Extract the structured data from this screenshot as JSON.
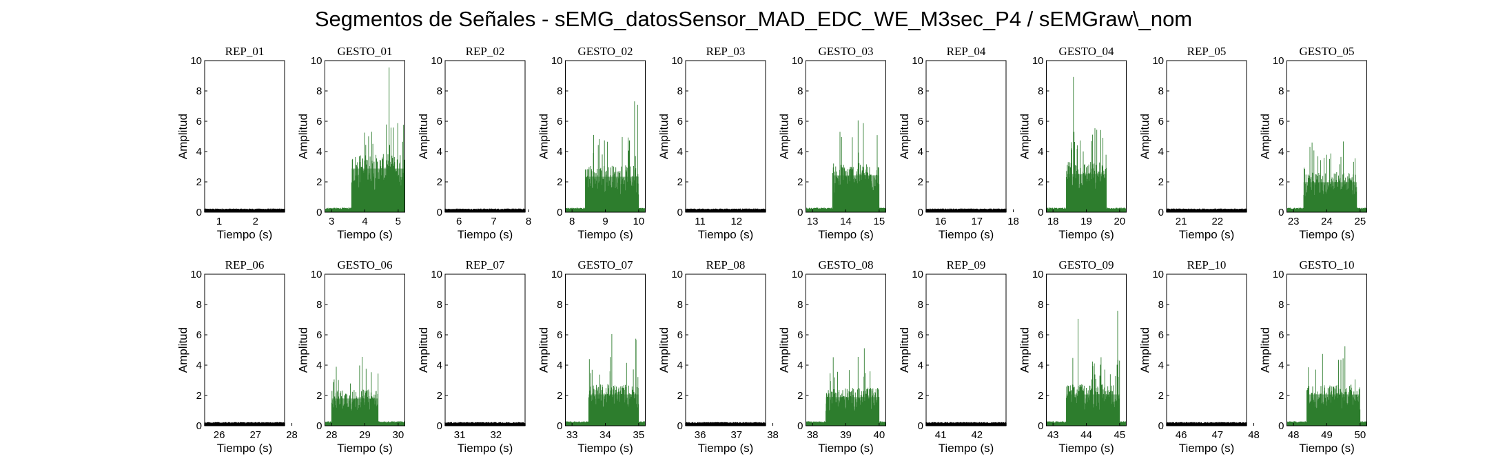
{
  "figure": {
    "title": "Segmentos de Señales - sEMG_datosSensor_MAD_EDC_WE_M3sec_P4 / sEMGraw\\_nom"
  },
  "colors": {
    "rest": "#000000",
    "gesture": "#2e7d2e",
    "axes": "#000000"
  },
  "chart_data": {
    "type": "line",
    "rows": 2,
    "cols": 10,
    "grid": false,
    "ylim": [
      0,
      10
    ],
    "yticks": [
      0,
      2,
      4,
      6,
      8,
      10
    ],
    "xlabel": "Tiempo (s)",
    "ylabel": "Amplitud",
    "panels": [
      {
        "title": "REP_01",
        "kind": "rest",
        "xlim": [
          0.6,
          2.8
        ],
        "xticks": [
          1,
          2
        ],
        "active": null,
        "peak": 0.25,
        "level": 0.2
      },
      {
        "title": "GESTO_01",
        "kind": "gesture",
        "xlim": [
          2.8,
          5.2
        ],
        "xticks": [
          3,
          4,
          5
        ],
        "active": [
          3.6,
          5.2
        ],
        "peak": 9.6,
        "level": 3.2
      },
      {
        "title": "REP_02",
        "kind": "rest",
        "xlim": [
          5.6,
          7.9
        ],
        "xticks": [
          6,
          7,
          8
        ],
        "active": null,
        "peak": 0.25,
        "level": 0.2
      },
      {
        "title": "GESTO_02",
        "kind": "gesture",
        "xlim": [
          7.8,
          10.2
        ],
        "xticks": [
          8,
          9,
          10
        ],
        "active": [
          8.4,
          10.0
        ],
        "peak": 8.1,
        "level": 2.6
      },
      {
        "title": "REP_03",
        "kind": "rest",
        "xlim": [
          10.6,
          12.8
        ],
        "xticks": [
          11,
          12
        ],
        "active": null,
        "peak": 0.25,
        "level": 0.2
      },
      {
        "title": "GESTO_03",
        "kind": "gesture",
        "xlim": [
          12.8,
          15.2
        ],
        "xticks": [
          13,
          14,
          15
        ],
        "active": [
          13.6,
          15.0
        ],
        "peak": 6.8,
        "level": 2.7
      },
      {
        "title": "REP_04",
        "kind": "rest",
        "xlim": [
          15.6,
          17.8
        ],
        "xticks": [
          16,
          17,
          18
        ],
        "active": null,
        "peak": 0.25,
        "level": 0.2
      },
      {
        "title": "GESTO_04",
        "kind": "gesture",
        "xlim": [
          17.8,
          20.2
        ],
        "xticks": [
          18,
          19,
          20
        ],
        "active": [
          18.4,
          19.6
        ],
        "peak": 9.9,
        "level": 2.8
      },
      {
        "title": "REP_05",
        "kind": "rest",
        "xlim": [
          20.6,
          22.8
        ],
        "xticks": [
          21,
          22
        ],
        "active": null,
        "peak": 0.25,
        "level": 0.2
      },
      {
        "title": "GESTO_05",
        "kind": "gesture",
        "xlim": [
          22.8,
          25.2
        ],
        "xticks": [
          23,
          24,
          25
        ],
        "active": [
          23.3,
          24.9
        ],
        "peak": 4.9,
        "level": 2.2
      },
      {
        "title": "REP_06",
        "kind": "rest",
        "xlim": [
          25.6,
          27.8
        ],
        "xticks": [
          26,
          27,
          28
        ],
        "active": null,
        "peak": 0.25,
        "level": 0.2
      },
      {
        "title": "GESTO_06",
        "kind": "gesture",
        "xlim": [
          27.8,
          30.2
        ],
        "xticks": [
          28,
          29,
          30
        ],
        "active": [
          28.0,
          29.4
        ],
        "peak": 4.6,
        "level": 2.0
      },
      {
        "title": "REP_07",
        "kind": "rest",
        "xlim": [
          30.6,
          32.8
        ],
        "xticks": [
          31,
          32
        ],
        "active": null,
        "peak": 0.25,
        "level": 0.2
      },
      {
        "title": "GESTO_07",
        "kind": "gesture",
        "xlim": [
          32.8,
          35.2
        ],
        "xticks": [
          33,
          34,
          35
        ],
        "active": [
          33.5,
          35.0
        ],
        "peak": 6.6,
        "level": 2.3
      },
      {
        "title": "REP_08",
        "kind": "rest",
        "xlim": [
          35.6,
          37.8
        ],
        "xticks": [
          36,
          37,
          38
        ],
        "active": null,
        "peak": 0.25,
        "level": 0.2
      },
      {
        "title": "GESTO_08",
        "kind": "gesture",
        "xlim": [
          37.8,
          40.2
        ],
        "xticks": [
          38,
          39,
          40
        ],
        "active": [
          38.4,
          40.0
        ],
        "peak": 5.3,
        "level": 2.1
      },
      {
        "title": "REP_09",
        "kind": "rest",
        "xlim": [
          40.6,
          42.8
        ],
        "xticks": [
          41,
          42
        ],
        "active": null,
        "peak": 0.25,
        "level": 0.2
      },
      {
        "title": "GESTO_09",
        "kind": "gesture",
        "xlim": [
          42.8,
          45.2
        ],
        "xticks": [
          43,
          44,
          45
        ],
        "active": [
          43.4,
          45.0
        ],
        "peak": 8.1,
        "level": 2.3
      },
      {
        "title": "REP_10",
        "kind": "rest",
        "xlim": [
          45.6,
          47.8
        ],
        "xticks": [
          46,
          47,
          48
        ],
        "active": null,
        "peak": 0.25,
        "level": 0.2
      },
      {
        "title": "GESTO_10",
        "kind": "gesture",
        "xlim": [
          47.8,
          50.2
        ],
        "xticks": [
          48,
          49,
          50
        ],
        "active": [
          48.4,
          50.0
        ],
        "peak": 5.5,
        "level": 2.3
      }
    ]
  }
}
